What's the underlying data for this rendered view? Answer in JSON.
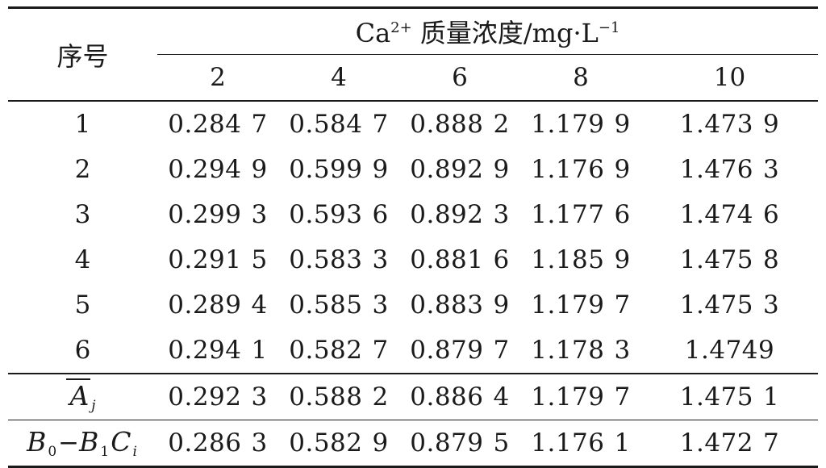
{
  "table": {
    "row_header": "序号",
    "group_header_prefix": "Ca",
    "group_header_sup": "2+",
    "group_header_suffix": "质量浓度/mg·L",
    "group_header_unit_sup": "−1",
    "concentrations": [
      "2",
      "4",
      "6",
      "8",
      "10"
    ],
    "rows": [
      {
        "label": "1",
        "values": [
          [
            "0.284",
            "7"
          ],
          [
            "0.584",
            "7"
          ],
          [
            "0.888",
            "2"
          ],
          [
            "1.179",
            "9"
          ],
          [
            "1.473",
            "9"
          ]
        ]
      },
      {
        "label": "2",
        "values": [
          [
            "0.294",
            "9"
          ],
          [
            "0.599",
            "9"
          ],
          [
            "0.892",
            "9"
          ],
          [
            "1.176",
            "9"
          ],
          [
            "1.476",
            "3"
          ]
        ]
      },
      {
        "label": "3",
        "values": [
          [
            "0.299",
            "3"
          ],
          [
            "0.593",
            "6"
          ],
          [
            "0.892",
            "3"
          ],
          [
            "1.177",
            "6"
          ],
          [
            "1.474",
            "6"
          ]
        ]
      },
      {
        "label": "4",
        "values": [
          [
            "0.291",
            "5"
          ],
          [
            "0.583",
            "3"
          ],
          [
            "0.881",
            "6"
          ],
          [
            "1.185",
            "9"
          ],
          [
            "1.475",
            "8"
          ]
        ]
      },
      {
        "label": "5",
        "values": [
          [
            "0.289",
            "4"
          ],
          [
            "0.585",
            "3"
          ],
          [
            "0.883",
            "9"
          ],
          [
            "1.179",
            "7"
          ],
          [
            "1.475",
            "3"
          ]
        ]
      },
      {
        "label": "6",
        "values": [
          [
            "0.294",
            "1"
          ],
          [
            "0.582",
            "7"
          ],
          [
            "0.879",
            "7"
          ],
          [
            "1.178",
            "3"
          ],
          [
            "1.4749",
            ""
          ]
        ]
      }
    ],
    "mean_row": {
      "symbol": "A",
      "subscript": "j",
      "values": [
        [
          "0.292",
          "3"
        ],
        [
          "0.588",
          "2"
        ],
        [
          "0.886",
          "4"
        ],
        [
          "1.179",
          "7"
        ],
        [
          "1.475",
          "1"
        ]
      ]
    },
    "fit_row": {
      "b0": "B",
      "b0_sub": "0",
      "minus": "−",
      "b1": "B",
      "b1_sub": "1",
      "c": "C",
      "c_sub": "i",
      "values": [
        [
          "0.286",
          "3"
        ],
        [
          "0.582",
          "9"
        ],
        [
          "0.879",
          "5"
        ],
        [
          "1.176",
          "1"
        ],
        [
          "1.472",
          "7"
        ]
      ]
    }
  }
}
